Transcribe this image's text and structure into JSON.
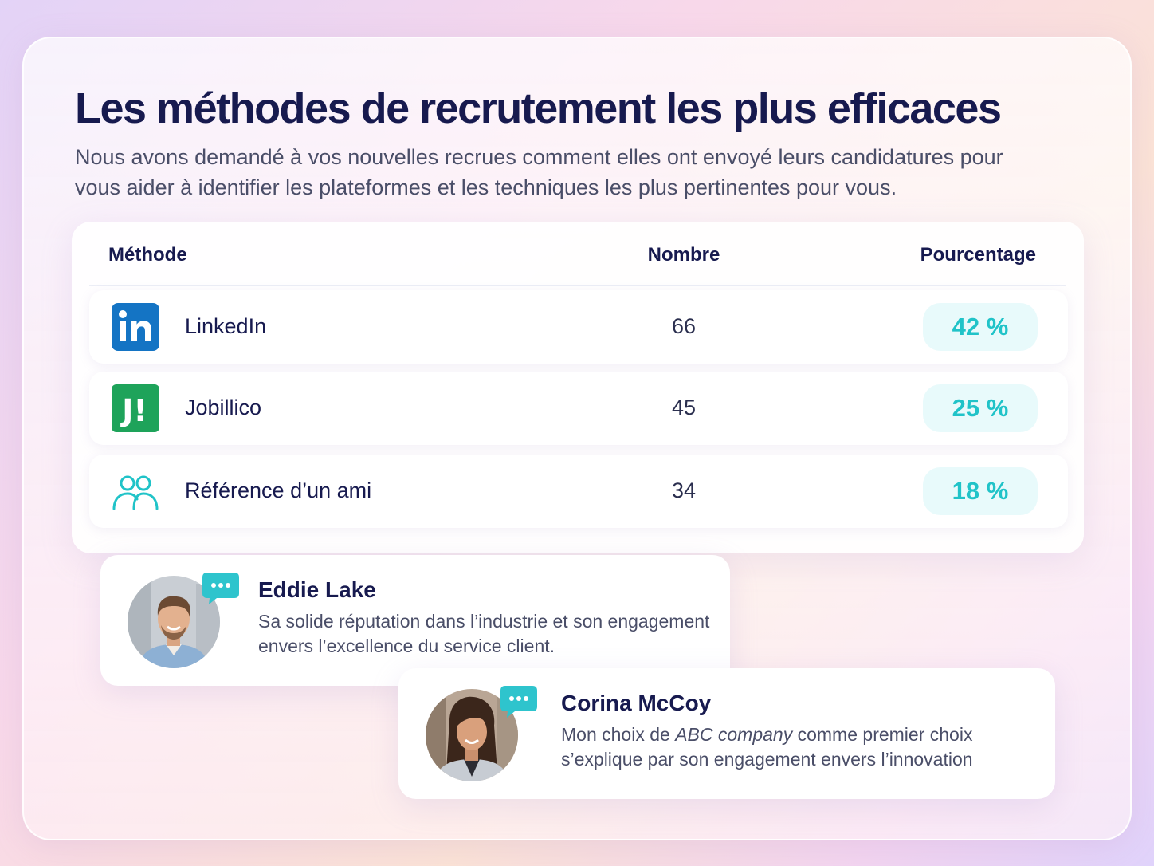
{
  "title": "Les méthodes de recrutement les plus efficaces",
  "subtitle": "Nous avons demandé à vos nouvelles recrues comment elles ont envoyé leurs candidatures pour vous aider à identifier les plateformes et les techniques les plus pertinentes pour vous.",
  "table": {
    "headers": {
      "method": "Méthode",
      "count": "Nombre",
      "percent": "Pourcentage"
    },
    "rows": [
      {
        "icon": "linkedin-icon",
        "label": "LinkedIn",
        "count": "66",
        "percent": "42 %"
      },
      {
        "icon": "jobillico-icon",
        "label": "Jobillico",
        "count": "45",
        "percent": "25 %"
      },
      {
        "icon": "users-icon",
        "label": "Référence d’un ami",
        "count": "34",
        "percent": "18 %"
      }
    ]
  },
  "testimonials": [
    {
      "name": "Eddie Lake",
      "text": "Sa solide réputation dans l’industrie et son engagement envers l’excellence du service client."
    },
    {
      "name": "Corina McCoy",
      "text_before": "Mon choix de ",
      "text_em": "ABC company",
      "text_after": " comme premier choix s’explique par son engagement envers l’innovation"
    }
  ],
  "colors": {
    "title": "#171a4f",
    "accent_teal": "#20c3c8",
    "linkedin_blue": "#1474c4",
    "jobillico_green": "#1ea35a"
  }
}
